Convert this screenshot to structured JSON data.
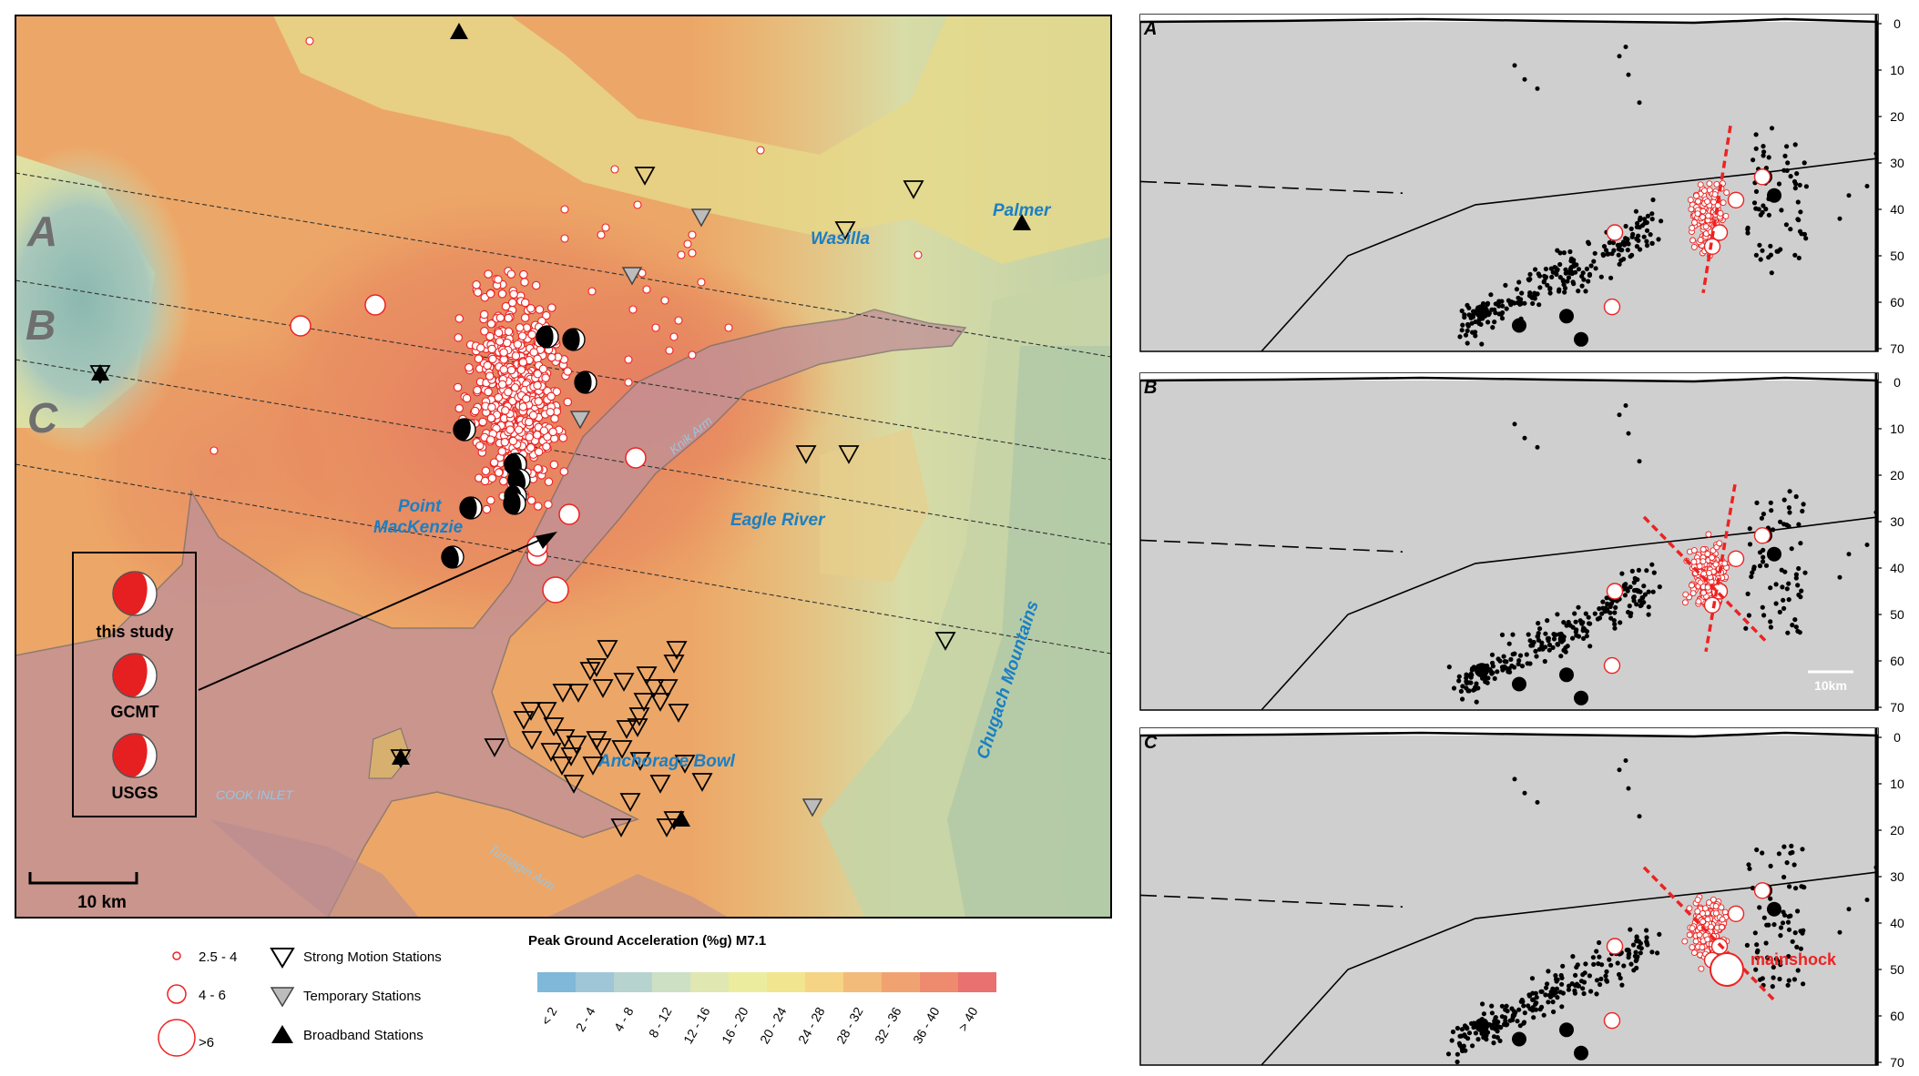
{
  "map": {
    "section_labels": [
      "A",
      "B",
      "C"
    ],
    "place_labels": {
      "palmer": "Palmer",
      "wasilla": "Wasilla",
      "knik_arm": "Knik Arm",
      "point_mackenzie_1": "Point",
      "point_mackenzie_2": "MacKenzie",
      "eagle_river": "Eagle River",
      "chugach": "Chugach Mountains",
      "anchorage_bowl": "Anchorage Bowl",
      "cook_inlet": "COOK INLET",
      "turnagain_arm": "Turnagin Arm"
    },
    "scale_bar": "10 km",
    "mechanism_inset": [
      "this study",
      "GCMT",
      "USGS"
    ]
  },
  "legend": {
    "mag_small": "2.5 - 4",
    "mag_mid": "4 - 6",
    "mag_large": ">6",
    "strong_motion": "Strong Motion Stations",
    "temporary": "Temporary Stations",
    "broadband": "Broadband Stations",
    "pga_title": "Peak Ground Acceleration (%g) M7.1",
    "pga_bins": [
      "< 2",
      "2 - 4",
      "4 - 8",
      "8 - 12",
      "12 - 16",
      "16 - 20",
      "20 - 24",
      "24 - 28",
      "28 - 32",
      "32 - 36",
      "36 - 40",
      "> 40"
    ],
    "pga_colors": [
      "#7fb8d8",
      "#9ec6d6",
      "#b7d3cf",
      "#cde0c4",
      "#e0e7b1",
      "#ecec9e",
      "#f2e58f",
      "#f5d486",
      "#f3bb7a",
      "#f1a271",
      "#ee8a6e",
      "#e9716f"
    ]
  },
  "sections": {
    "panels": [
      "A",
      "B",
      "C"
    ],
    "depth_ticks": [
      "0",
      "10",
      "20",
      "30",
      "40",
      "50",
      "60",
      "70"
    ],
    "scale_bar": "10km",
    "mainshock_label": "mainshock"
  }
}
